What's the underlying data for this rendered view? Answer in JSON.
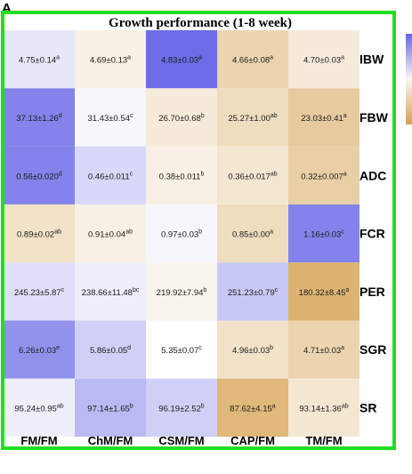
{
  "chart_data": {
    "type": "heatmap",
    "panel_label": "A",
    "title": "Growth performance (1-8 week)",
    "columns": [
      "FM/FM",
      "ChM/FM",
      "CSM/FM",
      "CAP/FM",
      "TM/FM"
    ],
    "rows": [
      "IBW",
      "FBW",
      "ADC",
      "FCR",
      "PER",
      "SGR",
      "SR"
    ],
    "colormap": {
      "low": "#d4a04e",
      "mid": "#fefefe",
      "high": "#6464e6"
    },
    "grid": false,
    "cells": [
      [
        {
          "value": "4.75±0.14",
          "sup": "a",
          "level": 0.15
        },
        {
          "value": "4.69±0.13",
          "sup": "a",
          "level": -0.15
        },
        {
          "value": "4.83±0.03",
          "sup": "a",
          "level": 0.95
        },
        {
          "value": "4.66±0.08",
          "sup": "a",
          "level": -0.45
        },
        {
          "value": "4.70±0.03",
          "sup": "a",
          "level": -0.2
        }
      ],
      [
        {
          "value": "37.13±1.26",
          "sup": "d",
          "level": 0.8
        },
        {
          "value": "31.43±0.54",
          "sup": "c",
          "level": 0.05
        },
        {
          "value": "26.70±0.68",
          "sup": "b",
          "level": -0.2
        },
        {
          "value": "25.27±1.00",
          "sup": "ab",
          "level": -0.35
        },
        {
          "value": "23.03±0.41",
          "sup": "a",
          "level": -0.55
        }
      ],
      [
        {
          "value": "0.56±0.020",
          "sup": "d",
          "level": 0.8
        },
        {
          "value": "0.46±0.011",
          "sup": "c",
          "level": 0.25
        },
        {
          "value": "0.38±0.011",
          "sup": "b",
          "level": -0.15
        },
        {
          "value": "0.36±0.017",
          "sup": "ab",
          "level": -0.25
        },
        {
          "value": "0.32±0.007",
          "sup": "a",
          "level": -0.5
        }
      ],
      [
        {
          "value": "0.89±0.02",
          "sup": "ab",
          "level": -0.3
        },
        {
          "value": "0.91±0.04",
          "sup": "ab",
          "level": -0.15
        },
        {
          "value": "0.97±0.03",
          "sup": "b",
          "level": 0.05
        },
        {
          "value": "0.85±0.00",
          "sup": "a",
          "level": -0.35
        },
        {
          "value": "1.16±0.03",
          "sup": "c",
          "level": 0.8
        }
      ],
      [
        {
          "value": "245.23±5.87",
          "sup": "c",
          "level": 0.2
        },
        {
          "value": "238.66±11.48",
          "sup": "bc",
          "level": 0.1
        },
        {
          "value": "219.92±7.94",
          "sup": "b",
          "level": -0.1
        },
        {
          "value": "251.23±0.79",
          "sup": "c",
          "level": 0.35
        },
        {
          "value": "180.32±8.45",
          "sup": "a",
          "level": -0.8
        }
      ],
      [
        {
          "value": "6.26±0.03",
          "sup": "e",
          "level": 0.7
        },
        {
          "value": "5.86±0.05",
          "sup": "d",
          "level": 0.3
        },
        {
          "value": "5.35±0.07",
          "sup": "c",
          "level": 0.0
        },
        {
          "value": "4.96±0.03",
          "sup": "b",
          "level": -0.3
        },
        {
          "value": "4.71±0.03",
          "sup": "a",
          "level": -0.45
        }
      ],
      [
        {
          "value": "95.24±0.95",
          "sup": "ab",
          "level": 0.1
        },
        {
          "value": "97.14±1.65",
          "sup": "b",
          "level": 0.45
        },
        {
          "value": "96.19±2.52",
          "sup": "b",
          "level": 0.3
        },
        {
          "value": "87.62±4.15",
          "sup": "a",
          "level": -0.75
        },
        {
          "value": "93.14±1.36",
          "sup": "ab",
          "level": -0.25
        }
      ]
    ]
  },
  "colors": {
    "frame": "#22dd22",
    "legend_bar_top": "#6464e6",
    "legend_bar_bottom": "#d4a04e"
  }
}
